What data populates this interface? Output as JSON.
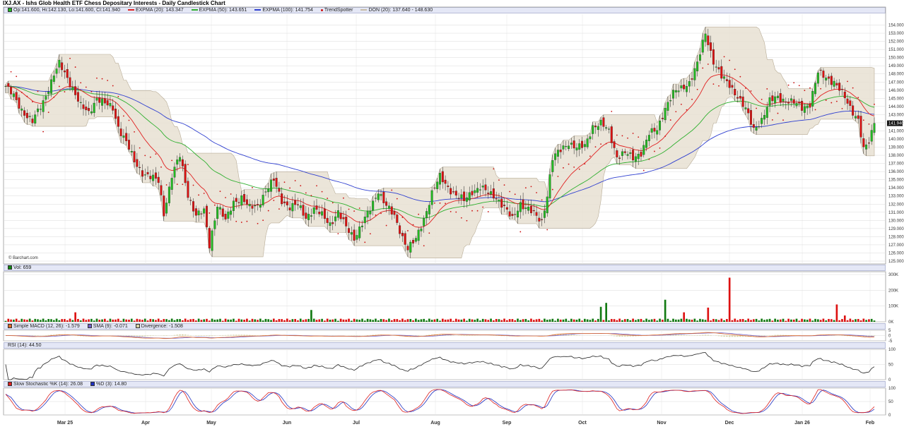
{
  "title": "IXJ.AX - Ishs Glob Health ETF Chess Depositary Interests - Daily Candlestick Chart",
  "copyright": "© Barchart.com",
  "legends": {
    "price": {
      "ohlc": "Op:141.600, Hi:142.130, Lo:141.600, Cl:141.940",
      "ema20": "EXPMA (20): 143.347",
      "ema50": "EXPMA (50): 143.651",
      "ema100": "EXPMA (100): 141.754",
      "trendspotter": "TrendSpotter",
      "don": "DON (20): 137.640 - 148.630"
    },
    "volume": {
      "label": "Vol: 659"
    },
    "macd": {
      "macd": "Simple MACD (12, 26): -1.579",
      "sma": "SMA (9): -0.071",
      "divergence": "Divergence: -1.508"
    },
    "rsi": {
      "label": "RSI (14): 44.50"
    },
    "stoch": {
      "k": "Slow Stochastic %K (14): 26.08",
      "d": "%D (3): 14.80"
    }
  },
  "colors": {
    "up": "#22bb22",
    "down": "#dd1111",
    "ema20": "#e02020",
    "ema50": "#30b030",
    "ema100": "#3040d0",
    "trend": "#cc1111",
    "channel": "#e8e0d2",
    "k": "#dd2020",
    "d": "#2030c0"
  },
  "last_price_label": "141.940",
  "chart_data": [
    {
      "type": "candlestick",
      "title": "IXJ.AX - Ishs Glob Health ETF Chess Depositary Interests - Daily Candlestick Chart",
      "x_tick_labels": [
        "Mar 25",
        "Apr",
        "May",
        "Jun",
        "Jul",
        "Aug",
        "Sep",
        "Oct",
        "Nov",
        "Dec",
        "Jan 26",
        "Feb"
      ],
      "ylim": [
        125,
        155
      ],
      "y_ticks": [
        125,
        126,
        127,
        128,
        129,
        130,
        131,
        132,
        133,
        134,
        135,
        136,
        137,
        138,
        139,
        140,
        141,
        142,
        143,
        144,
        145,
        146,
        147,
        148,
        149,
        150,
        151,
        152,
        153,
        154
      ],
      "close_path": [
        {
          "i": 0,
          "v": 146.5
        },
        {
          "i": 3,
          "v": 145.2
        },
        {
          "i": 6,
          "v": 143.6
        },
        {
          "i": 10,
          "v": 142.1
        },
        {
          "i": 14,
          "v": 144.6
        },
        {
          "i": 18,
          "v": 147.9
        },
        {
          "i": 20,
          "v": 149.2
        },
        {
          "i": 22,
          "v": 148.1
        },
        {
          "i": 25,
          "v": 146.3
        },
        {
          "i": 28,
          "v": 144.0
        },
        {
          "i": 31,
          "v": 143.2
        },
        {
          "i": 34,
          "v": 145.1
        },
        {
          "i": 37,
          "v": 144.3
        },
        {
          "i": 40,
          "v": 143.8
        },
        {
          "i": 42,
          "v": 141.5
        },
        {
          "i": 45,
          "v": 139.6
        },
        {
          "i": 48,
          "v": 137.2
        },
        {
          "i": 51,
          "v": 135.9
        },
        {
          "i": 54,
          "v": 135.3
        },
        {
          "i": 57,
          "v": 134.8
        },
        {
          "i": 59,
          "v": 130.9
        },
        {
          "i": 62,
          "v": 135.5
        },
        {
          "i": 65,
          "v": 137.9
        },
        {
          "i": 68,
          "v": 133.2
        },
        {
          "i": 71,
          "v": 130.6
        },
        {
          "i": 74,
          "v": 131.1
        },
        {
          "i": 76,
          "v": 127.0
        },
        {
          "i": 79,
          "v": 131.9
        },
        {
          "i": 82,
          "v": 129.9
        },
        {
          "i": 85,
          "v": 132.3
        },
        {
          "i": 88,
          "v": 132.8
        },
        {
          "i": 91,
          "v": 131.5
        },
        {
          "i": 94,
          "v": 131.9
        },
        {
          "i": 97,
          "v": 133.6
        },
        {
          "i": 100,
          "v": 134.9
        },
        {
          "i": 103,
          "v": 132.5
        },
        {
          "i": 106,
          "v": 131.6
        },
        {
          "i": 109,
          "v": 131.9
        },
        {
          "i": 112,
          "v": 130.4
        },
        {
          "i": 115,
          "v": 131.4
        },
        {
          "i": 118,
          "v": 130.6
        },
        {
          "i": 121,
          "v": 129.6
        },
        {
          "i": 124,
          "v": 131.0
        },
        {
          "i": 127,
          "v": 129.1
        },
        {
          "i": 130,
          "v": 127.9
        },
        {
          "i": 133,
          "v": 129.6
        },
        {
          "i": 136,
          "v": 131.3
        },
        {
          "i": 139,
          "v": 133.7
        },
        {
          "i": 142,
          "v": 131.8
        },
        {
          "i": 145,
          "v": 130.4
        },
        {
          "i": 148,
          "v": 128.0
        },
        {
          "i": 150,
          "v": 126.6
        },
        {
          "i": 153,
          "v": 127.6
        },
        {
          "i": 156,
          "v": 130.2
        },
        {
          "i": 159,
          "v": 133.4
        },
        {
          "i": 162,
          "v": 135.3
        },
        {
          "i": 165,
          "v": 134.1
        },
        {
          "i": 168,
          "v": 133.1
        },
        {
          "i": 171,
          "v": 132.4
        },
        {
          "i": 174,
          "v": 133.6
        },
        {
          "i": 177,
          "v": 134.1
        },
        {
          "i": 180,
          "v": 133.3
        },
        {
          "i": 183,
          "v": 132.9
        },
        {
          "i": 186,
          "v": 131.6
        },
        {
          "i": 189,
          "v": 130.1
        },
        {
          "i": 192,
          "v": 132.1
        },
        {
          "i": 195,
          "v": 131.4
        },
        {
          "i": 198,
          "v": 130.4
        },
        {
          "i": 200,
          "v": 129.9
        },
        {
          "i": 202,
          "v": 133.2
        },
        {
          "i": 204,
          "v": 137.6
        },
        {
          "i": 207,
          "v": 138.6
        },
        {
          "i": 210,
          "v": 139.6
        },
        {
          "i": 213,
          "v": 138.9
        },
        {
          "i": 216,
          "v": 139.1
        },
        {
          "i": 219,
          "v": 141.6
        },
        {
          "i": 222,
          "v": 141.9
        },
        {
          "i": 225,
          "v": 140.9
        },
        {
          "i": 228,
          "v": 137.9
        },
        {
          "i": 231,
          "v": 138.3
        },
        {
          "i": 234,
          "v": 137.6
        },
        {
          "i": 237,
          "v": 138.4
        },
        {
          "i": 240,
          "v": 140.6
        },
        {
          "i": 243,
          "v": 141.1
        },
        {
          "i": 246,
          "v": 143.9
        },
        {
          "i": 249,
          "v": 145.6
        },
        {
          "i": 252,
          "v": 146.2
        },
        {
          "i": 255,
          "v": 147.0
        },
        {
          "i": 258,
          "v": 149.2
        },
        {
          "i": 261,
          "v": 153.0
        },
        {
          "i": 264,
          "v": 149.6
        },
        {
          "i": 267,
          "v": 147.6
        },
        {
          "i": 270,
          "v": 146.6
        },
        {
          "i": 273,
          "v": 145.3
        },
        {
          "i": 276,
          "v": 143.6
        },
        {
          "i": 279,
          "v": 141.2
        },
        {
          "i": 282,
          "v": 142.4
        },
        {
          "i": 285,
          "v": 144.6
        },
        {
          "i": 288,
          "v": 145.2
        },
        {
          "i": 291,
          "v": 144.7
        },
        {
          "i": 294,
          "v": 144.4
        },
        {
          "i": 297,
          "v": 143.9
        },
        {
          "i": 300,
          "v": 144.3
        },
        {
          "i": 303,
          "v": 148.1
        },
        {
          "i": 306,
          "v": 147.6
        },
        {
          "i": 309,
          "v": 147.0
        },
        {
          "i": 312,
          "v": 145.6
        },
        {
          "i": 315,
          "v": 143.9
        },
        {
          "i": 318,
          "v": 142.4
        },
        {
          "i": 320,
          "v": 138.6
        },
        {
          "i": 322,
          "v": 139.6
        },
        {
          "i": 324,
          "v": 141.9
        }
      ],
      "n_bars": 325,
      "last_close": 141.94,
      "volume": {
        "ylim": [
          0,
          300000
        ],
        "y_ticks": [
          "0K",
          "100K",
          "200K",
          "300K"
        ],
        "spikes": [
          {
            "i": 26,
            "v": 60000
          },
          {
            "i": 114,
            "v": 75000
          },
          {
            "i": 222,
            "v": 95000
          },
          {
            "i": 224,
            "v": 120000
          },
          {
            "i": 246,
            "v": 140000
          },
          {
            "i": 253,
            "v": 60000
          },
          {
            "i": 262,
            "v": 90000
          },
          {
            "i": 270,
            "v": 280000
          },
          {
            "i": 310,
            "v": 110000
          },
          {
            "i": 313,
            "v": 40000
          }
        ]
      },
      "macd": {
        "ylim": [
          -5,
          5
        ],
        "y_ticks": [
          "-5",
          "0",
          "5"
        ]
      },
      "rsi": {
        "ylim": [
          0,
          100
        ],
        "y_ticks": [
          "0",
          "50",
          "100"
        ]
      },
      "stochastic": {
        "ylim": [
          0,
          100
        ],
        "y_ticks": [
          "0",
          "50",
          "100"
        ]
      }
    }
  ]
}
